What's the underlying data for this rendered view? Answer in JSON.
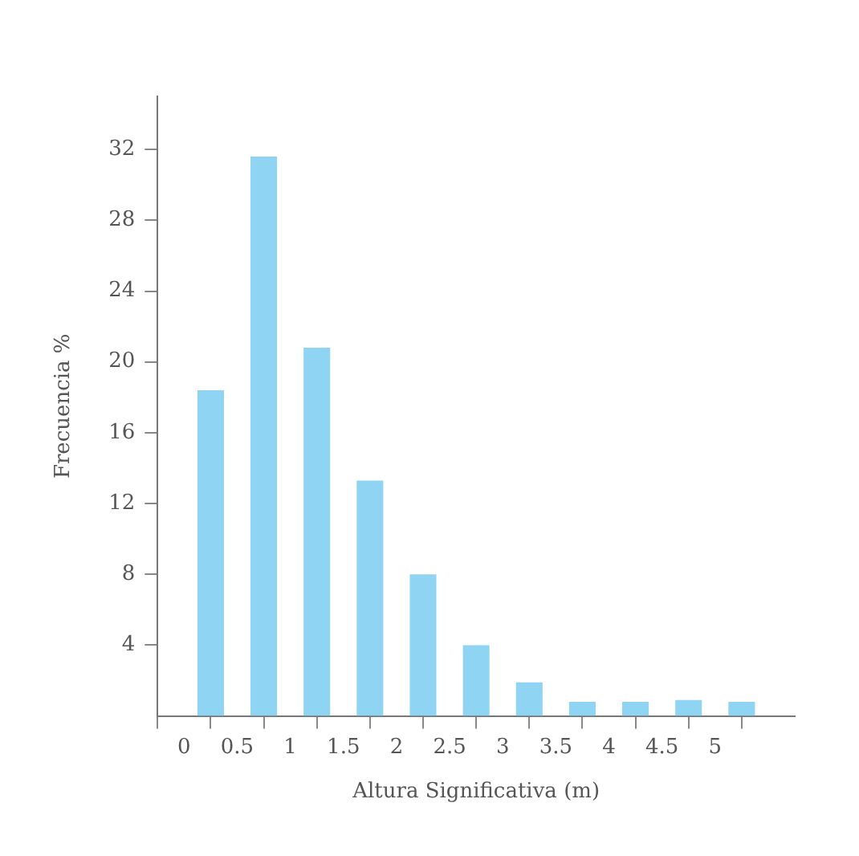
{
  "chart_data": {
    "type": "histogram",
    "xlabel": "Altura Significativa (m)",
    "ylabel": "Frecuencia %",
    "bins": [
      0,
      0.5,
      1,
      1.5,
      2,
      2.5,
      3,
      3.5,
      4,
      4.5,
      5,
      5.5
    ],
    "values": [
      18.4,
      31.6,
      20.8,
      13.3,
      8.0,
      4.0,
      1.9,
      0.8,
      0.8,
      0.9,
      0.8
    ],
    "color": "#8fd4f2",
    "xlim": [
      -0.25,
      5.75
    ],
    "xticks": [
      0,
      0.5,
      1,
      1.5,
      2,
      2.5,
      3,
      3.5,
      4,
      4.5,
      5
    ],
    "ylim": [
      0,
      35
    ],
    "yticks": [
      4,
      8,
      12,
      16,
      20,
      24,
      28,
      32
    ],
    "grid": false,
    "legend": false
  }
}
